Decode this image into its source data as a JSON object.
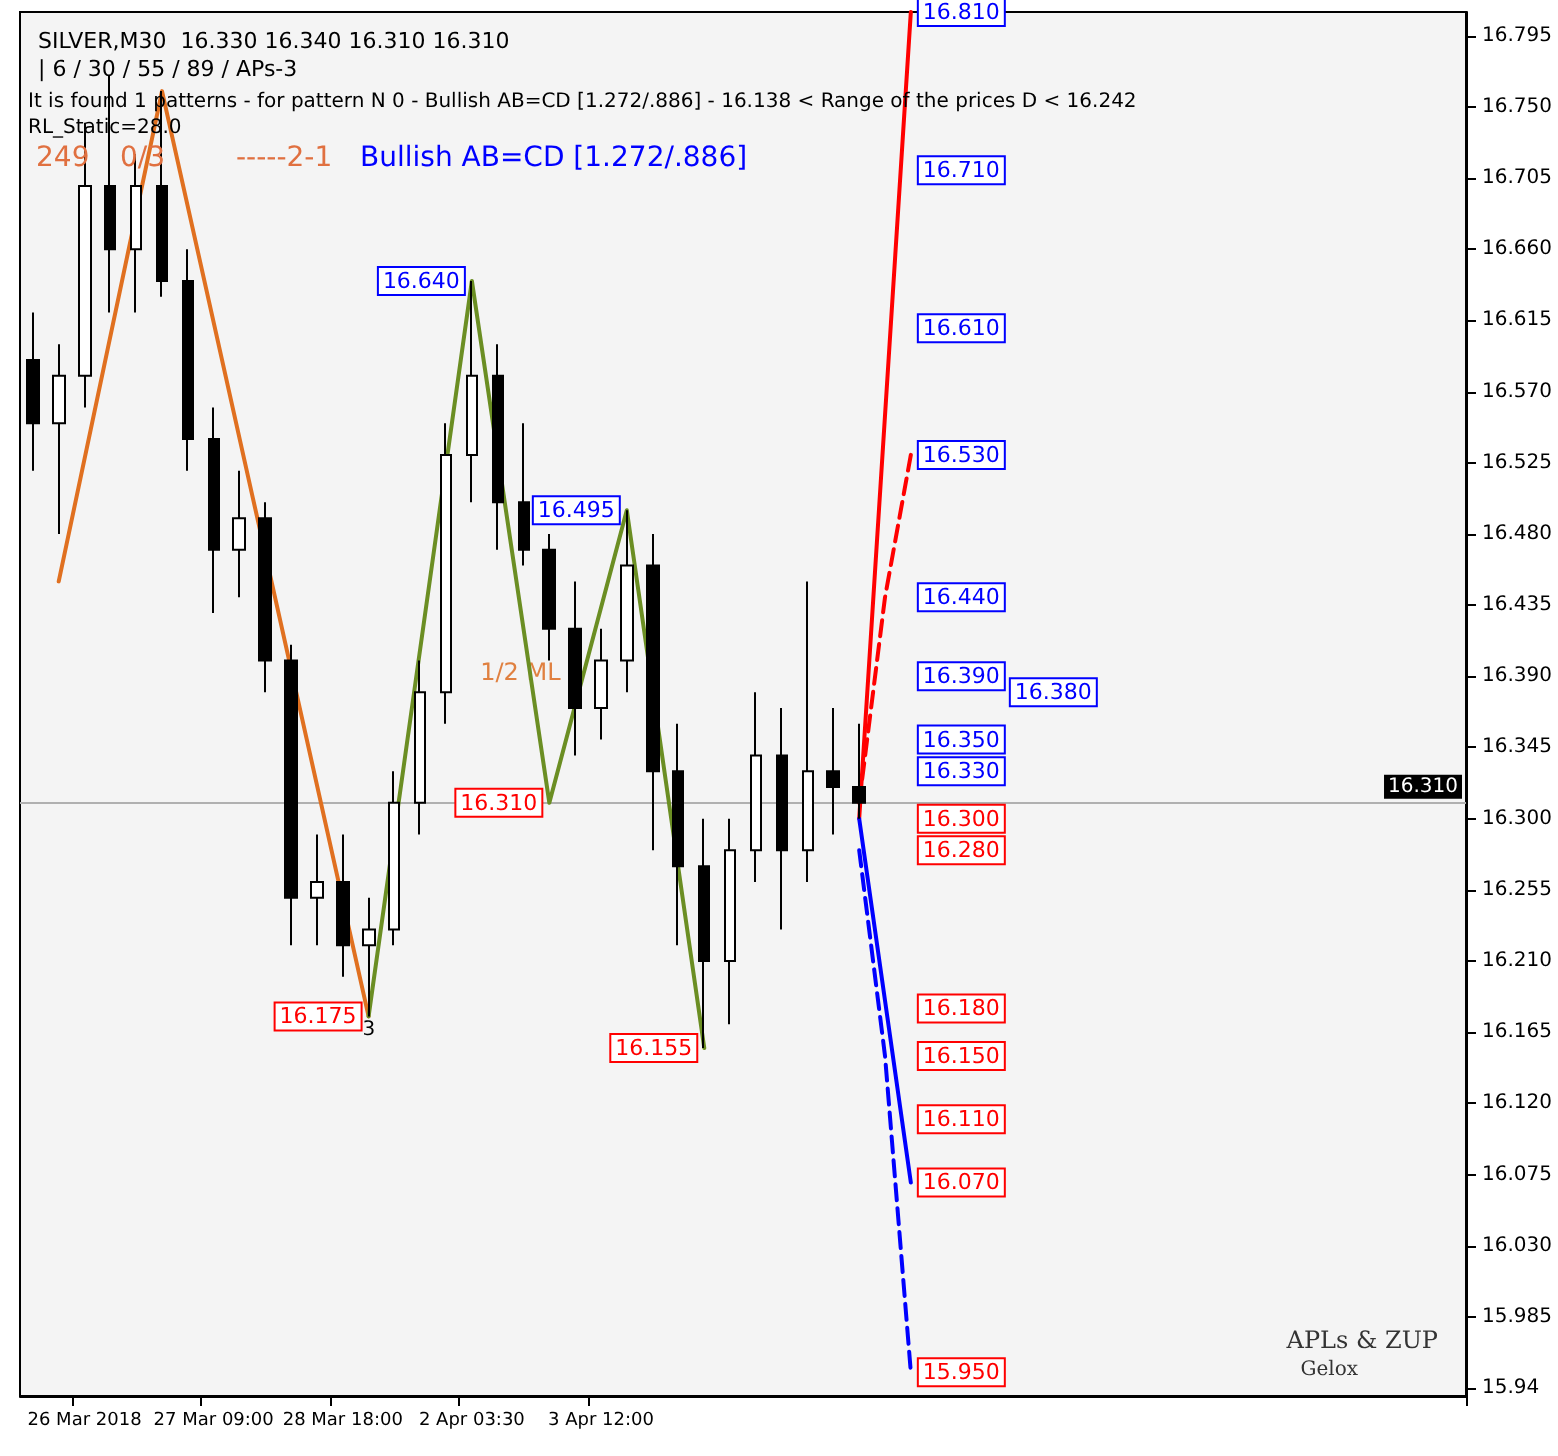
{
  "chart_data": {
    "type": "candlestick",
    "title": "SILVER,M30  16.330 16.340 16.310 16.310",
    "subtitle": "| 6 / 30 / 55 / 89 / APs-3",
    "categories": [
      null,
      null,
      "26 Mar 2018",
      null,
      null,
      null,
      null,
      "27 Mar 09:00",
      null,
      null,
      null,
      null,
      "28 Mar 18:00",
      null,
      null,
      null,
      null,
      "2 Apr 03:30",
      null,
      null,
      null,
      null,
      "3 Apr 12:00",
      null,
      null,
      null,
      null,
      null,
      null,
      null,
      null,
      null,
      null,
      null,
      null,
      null,
      null,
      null,
      null,
      null,
      null,
      null,
      null,
      null,
      null,
      null,
      null,
      null,
      null,
      null,
      null,
      null,
      null,
      null,
      null,
      null
    ],
    "color": "#000000",
    "ohlc": [
      [
        16.59,
        16.62,
        16.52,
        16.55
      ],
      [
        16.55,
        16.6,
        16.48,
        16.58
      ],
      [
        16.58,
        16.74,
        16.56,
        16.7
      ],
      [
        16.7,
        16.77,
        16.62,
        16.66
      ],
      [
        16.66,
        16.72,
        16.62,
        16.7
      ],
      [
        16.7,
        16.76,
        16.63,
        16.64
      ],
      [
        16.64,
        16.66,
        16.52,
        16.54
      ],
      [
        16.54,
        16.56,
        16.43,
        16.47
      ],
      [
        16.47,
        16.52,
        16.44,
        16.49
      ],
      [
        16.49,
        16.5,
        16.38,
        16.4
      ],
      [
        16.4,
        16.41,
        16.22,
        16.25
      ],
      [
        16.25,
        16.29,
        16.22,
        16.26
      ],
      [
        16.26,
        16.29,
        16.2,
        16.22
      ],
      [
        16.22,
        16.25,
        16.175,
        16.23
      ],
      [
        16.23,
        16.33,
        16.22,
        16.31
      ],
      [
        16.31,
        16.4,
        16.29,
        16.38
      ],
      [
        16.38,
        16.55,
        16.36,
        16.53
      ],
      [
        16.53,
        16.64,
        16.5,
        16.58
      ],
      [
        16.58,
        16.6,
        16.47,
        16.5
      ],
      [
        16.5,
        16.55,
        16.46,
        16.47
      ],
      [
        16.47,
        16.48,
        16.4,
        16.42
      ],
      [
        16.42,
        16.45,
        16.34,
        16.37
      ],
      [
        16.37,
        16.42,
        16.35,
        16.4
      ],
      [
        16.4,
        16.495,
        16.38,
        16.46
      ],
      [
        16.46,
        16.48,
        16.28,
        16.33
      ],
      [
        16.33,
        16.36,
        16.22,
        16.27
      ],
      [
        16.27,
        16.3,
        16.155,
        16.21
      ],
      [
        16.21,
        16.3,
        16.17,
        16.28
      ],
      [
        16.28,
        16.38,
        16.26,
        16.34
      ],
      [
        16.34,
        16.37,
        16.23,
        16.28
      ],
      [
        16.28,
        16.45,
        16.26,
        16.33
      ],
      [
        16.33,
        16.37,
        16.29,
        16.32
      ],
      [
        16.32,
        16.36,
        16.3,
        16.31
      ],
      null,
      null,
      null,
      null,
      null,
      null,
      null,
      null,
      null,
      null,
      null,
      null,
      null,
      null,
      null,
      null,
      null,
      null,
      null,
      null,
      null,
      null,
      null
    ],
    "series": [
      {
        "type": "line",
        "color": "#e07020",
        "line_style": "solid",
        "values": [
          null,
          16.45,
          null,
          null,
          null,
          16.76,
          null,
          null,
          null,
          null,
          null,
          null,
          null,
          16.175,
          null,
          null,
          null,
          null,
          null,
          null,
          null,
          null,
          null,
          null,
          null,
          null,
          null,
          null,
          null,
          null,
          null,
          null,
          null,
          null,
          null,
          null,
          null,
          null,
          null,
          null,
          null,
          null,
          null,
          null,
          null,
          null,
          null,
          null,
          null,
          null,
          null,
          null,
          null,
          null,
          null,
          null
        ]
      },
      {
        "type": "line",
        "color": "#6b8e23",
        "line_style": "solid",
        "values": [
          null,
          null,
          null,
          null,
          null,
          null,
          null,
          null,
          null,
          null,
          null,
          null,
          null,
          16.175,
          null,
          null,
          null,
          16.64,
          null,
          null,
          16.31,
          null,
          null,
          16.495,
          null,
          null,
          16.155,
          null,
          null,
          null,
          null,
          null,
          null,
          null,
          null,
          null,
          null,
          null,
          null,
          null,
          null,
          null,
          null,
          null,
          null,
          null,
          null,
          null,
          null,
          null,
          null,
          null,
          null,
          null,
          null,
          null
        ]
      },
      {
        "type": "line",
        "color": "#ff0000",
        "line_style": "solid",
        "values": [
          null,
          null,
          null,
          null,
          null,
          null,
          null,
          null,
          null,
          null,
          null,
          null,
          null,
          null,
          null,
          null,
          null,
          null,
          null,
          null,
          null,
          null,
          null,
          null,
          null,
          null,
          null,
          null,
          null,
          null,
          null,
          null,
          16.3,
          null,
          16.81,
          null,
          null,
          null,
          null,
          null,
          null,
          null,
          null,
          null,
          null,
          null,
          null,
          null,
          null,
          null,
          null,
          null,
          null,
          null,
          null,
          null
        ]
      },
      {
        "type": "line",
        "color": "#ff0000",
        "line_style": "dashed",
        "values": [
          null,
          null,
          null,
          null,
          null,
          null,
          null,
          null,
          null,
          null,
          null,
          null,
          null,
          null,
          null,
          null,
          null,
          null,
          null,
          null,
          null,
          null,
          null,
          null,
          null,
          null,
          null,
          null,
          null,
          null,
          null,
          null,
          16.31,
          16.44,
          16.53,
          null,
          null,
          null,
          null,
          null,
          null,
          null,
          null,
          null,
          null,
          null,
          null,
          null,
          null,
          null,
          null,
          null,
          null,
          null,
          null,
          null
        ]
      },
      {
        "type": "line",
        "color": "#0000ff",
        "line_style": "solid",
        "values": [
          null,
          null,
          null,
          null,
          null,
          null,
          null,
          null,
          null,
          null,
          null,
          null,
          null,
          null,
          null,
          null,
          null,
          null,
          null,
          null,
          null,
          null,
          null,
          null,
          null,
          null,
          null,
          null,
          null,
          null,
          null,
          null,
          16.3,
          null,
          16.07,
          null,
          null,
          null,
          null,
          null,
          null,
          null,
          null,
          null,
          null,
          null,
          null,
          null,
          null,
          null,
          null,
          null,
          null,
          null,
          null,
          null
        ]
      },
      {
        "type": "line",
        "color": "#0000ff",
        "line_style": "dashed",
        "values": [
          null,
          null,
          null,
          null,
          null,
          null,
          null,
          null,
          null,
          null,
          null,
          null,
          null,
          null,
          null,
          null,
          null,
          null,
          null,
          null,
          null,
          null,
          null,
          null,
          null,
          null,
          null,
          null,
          null,
          null,
          null,
          null,
          16.28,
          16.15,
          15.95,
          null,
          null,
          null,
          null,
          null,
          null,
          null,
          null,
          null,
          null,
          null,
          null,
          null,
          null,
          null,
          null,
          null,
          null,
          null,
          null,
          null
        ]
      }
    ],
    "marker": "none",
    "ylim": [
      15.935,
      16.81
    ],
    "yticks": [
      15.94,
      15.985,
      {
        "value": 16.03,
        "label": "16.030"
      },
      16.075,
      {
        "value": 16.12,
        "label": "16.120"
      },
      16.165,
      {
        "value": 16.21,
        "label": "16.210"
      },
      16.255,
      {
        "value": 16.3,
        "label": "16.300"
      },
      16.345,
      {
        "value": 16.39,
        "label": "16.390"
      },
      16.435,
      {
        "value": 16.48,
        "label": "16.480"
      },
      16.525,
      {
        "value": 16.57,
        "label": "16.570"
      },
      16.615,
      {
        "value": 16.66,
        "label": "16.660"
      },
      16.705,
      {
        "value": 16.75,
        "label": "16.750"
      },
      16.795
    ],
    "grid": false,
    "ref_lines": [
      {
        "axis": "y",
        "value": 16.31,
        "label": "16.310",
        "color": "#b0b0b0"
      }
    ],
    "annotations": [
      "It is found 1 patterns - for pattern N 0 - Bullish AB=CD [1.272/.886] - 16.138 < Range of the prices D < 16.242",
      "RL_Static=28.0",
      "249",
      "0/3",
      "-----2-1",
      "Bullish AB=CD [1.272/.886]",
      "APLs & ZUP",
      "Gelox",
      "3",
      "1/2 ML",
      {
        "text": "16.640",
        "y": 16.64
      },
      {
        "text": "16.495",
        "y": 16.495
      },
      {
        "text": "16.310",
        "y": 16.31
      },
      {
        "text": "16.175",
        "y": 16.175
      },
      {
        "text": "16.155",
        "y": 16.155
      },
      {
        "text": "16.810",
        "y": 16.81
      },
      {
        "text": "16.710",
        "y": 16.71
      },
      {
        "text": "16.610",
        "y": 16.61
      },
      {
        "text": "16.530",
        "y": 16.53
      },
      {
        "text": "16.440",
        "y": 16.44
      },
      {
        "text": "16.390",
        "y": 16.39
      },
      {
        "text": "16.380",
        "y": 16.38
      },
      {
        "text": "16.350",
        "y": 16.35
      },
      {
        "text": "16.330",
        "y": 16.33
      },
      {
        "text": "16.300",
        "y": 16.3
      },
      {
        "text": "16.280",
        "y": 16.28
      },
      {
        "text": "16.180",
        "y": 16.18
      },
      {
        "text": "16.150",
        "y": 16.15
      },
      {
        "text": "16.110",
        "y": 16.11
      },
      {
        "text": "16.070",
        "y": 16.07
      },
      {
        "text": "15.950",
        "y": 15.95
      }
    ]
  }
}
